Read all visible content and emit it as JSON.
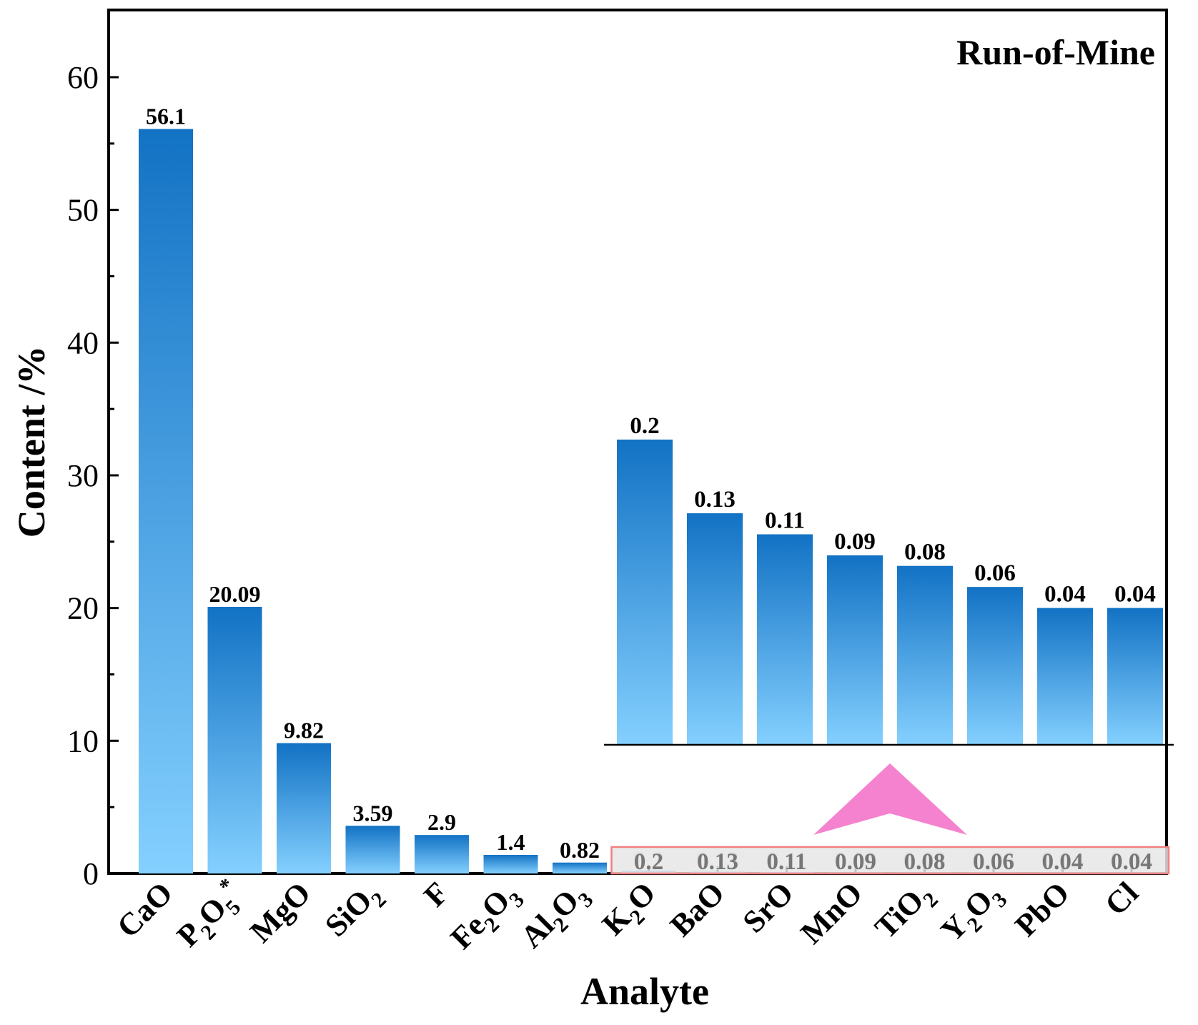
{
  "chart_data": {
    "type": "bar",
    "title": "Run-of-Mine",
    "xlabel": "Analyte",
    "ylabel": "Content /%",
    "ylim": [
      0,
      65
    ],
    "yticks": [
      0,
      10,
      20,
      30,
      40,
      50,
      60
    ],
    "ytick_labels": [
      "0",
      "10",
      "20",
      "30",
      "40",
      "50",
      "60"
    ],
    "categories": [
      {
        "label": "CaO",
        "base": "CaO",
        "parts": []
      },
      {
        "label": "P2O5*",
        "base": "P",
        "parts": [
          {
            "t": "2",
            "s": "sub"
          },
          {
            "t": "O",
            "s": "n"
          },
          {
            "t": "5",
            "s": "sub"
          },
          {
            "t": "*",
            "s": "sup"
          }
        ]
      },
      {
        "label": "MgO",
        "base": "MgO",
        "parts": []
      },
      {
        "label": "SiO2",
        "base": "SiO",
        "parts": [
          {
            "t": "2",
            "s": "sub"
          }
        ]
      },
      {
        "label": "F",
        "base": "F",
        "parts": []
      },
      {
        "label": "Fe2O3",
        "base": "Fe",
        "parts": [
          {
            "t": "2",
            "s": "sub"
          },
          {
            "t": "O",
            "s": "n"
          },
          {
            "t": "3",
            "s": "sub"
          }
        ]
      },
      {
        "label": "Al2O3",
        "base": "Al",
        "parts": [
          {
            "t": "2",
            "s": "sub"
          },
          {
            "t": "O",
            "s": "n"
          },
          {
            "t": "3",
            "s": "sub"
          }
        ]
      },
      {
        "label": "K2O",
        "base": "K",
        "parts": [
          {
            "t": "2",
            "s": "sub"
          },
          {
            "t": "O",
            "s": "n"
          }
        ]
      },
      {
        "label": "BaO",
        "base": "BaO",
        "parts": []
      },
      {
        "label": "SrO",
        "base": "SrO",
        "parts": []
      },
      {
        "label": "MnO",
        "base": "MnO",
        "parts": []
      },
      {
        "label": "TiO2",
        "base": "TiO",
        "parts": [
          {
            "t": "2",
            "s": "sub"
          }
        ]
      },
      {
        "label": "Y2O3",
        "base": "Y",
        "parts": [
          {
            "t": "2",
            "s": "sub"
          },
          {
            "t": "O",
            "s": "n"
          },
          {
            "t": "3",
            "s": "sub"
          }
        ]
      },
      {
        "label": "PbO",
        "base": "PbO",
        "parts": []
      },
      {
        "label": "Cl",
        "base": "Cl",
        "parts": []
      }
    ],
    "values": [
      56.1,
      20.09,
      9.82,
      3.59,
      2.9,
      1.4,
      0.82,
      0.2,
      0.13,
      0.11,
      0.09,
      0.08,
      0.06,
      0.04,
      0.04
    ],
    "value_labels": [
      "56.1",
      "20.09",
      "9.82",
      "3.59",
      "2.9",
      "1.4",
      "0.82",
      "0.2",
      "0.13",
      "0.11",
      "0.09",
      "0.08",
      "0.06",
      "0.04",
      "0.04"
    ],
    "inset": {
      "description": "Zoomed view of the minor analytes",
      "categories": [
        "K2O",
        "BaO",
        "SrO",
        "MnO",
        "TiO2",
        "Y2O3",
        "PbO",
        "Cl"
      ],
      "values": [
        0.2,
        0.13,
        0.11,
        0.09,
        0.08,
        0.06,
        0.04,
        0.04
      ],
      "value_labels": [
        "0.2",
        "0.13",
        "0.11",
        "0.09",
        "0.08",
        "0.06",
        "0.04",
        "0.04"
      ],
      "ylim": [
        -0.09,
        0.2
      ]
    },
    "colors": {
      "bar_top": "#1272C4",
      "bar_bottom": "#84D0FF",
      "highlight_box": "#F08080",
      "highlight_fill": "#E6E6E6",
      "arrow": "#F582CF",
      "axis": "#000000",
      "faded_label": "#777777"
    }
  }
}
